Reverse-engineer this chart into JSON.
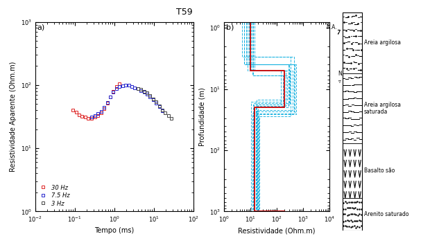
{
  "title": "T59",
  "panel_a": {
    "xlabel": "Tempo (ms)",
    "ylabel": "Resistividade Aparente (Ohm.m)",
    "xlim": [
      0.01,
      100
    ],
    "ylim": [
      1,
      1000
    ],
    "series": [
      {
        "label": "30 Hz",
        "color": "#dd2222",
        "marker": "s",
        "x": [
          0.09,
          0.11,
          0.13,
          0.155,
          0.185,
          0.22,
          0.27,
          0.33,
          0.39,
          0.47,
          0.56,
          0.67,
          0.8,
          0.95,
          1.14,
          1.36
        ],
        "y": [
          40,
          37,
          34,
          32,
          31,
          30,
          30,
          31,
          33,
          36,
          42,
          52,
          65,
          80,
          95,
          105
        ]
      },
      {
        "label": "7.5 Hz",
        "color": "#2222cc",
        "marker": "s",
        "x": [
          0.27,
          0.33,
          0.39,
          0.47,
          0.56,
          0.67,
          0.8,
          0.95,
          1.14,
          1.36,
          1.63,
          1.95,
          2.33,
          2.79,
          3.33,
          3.98,
          4.76,
          5.7,
          6.8,
          8.1,
          9.7,
          11.6,
          13.9,
          16.6
        ],
        "y": [
          31,
          33,
          35,
          38,
          44,
          53,
          65,
          78,
          88,
          95,
          98,
          100,
          99,
          95,
          90,
          87,
          82,
          78,
          72,
          65,
          58,
          52,
          45,
          39
        ]
      },
      {
        "label": "3 Hz",
        "color": "#444444",
        "marker": "s",
        "x": [
          3.98,
          4.76,
          5.7,
          6.8,
          8.1,
          9.7,
          11.6,
          13.9,
          16.6,
          19.8,
          23.7,
          28.3
        ],
        "y": [
          88,
          85,
          80,
          75,
          68,
          60,
          54,
          47,
          40,
          36,
          33,
          30
        ]
      }
    ]
  },
  "panel_b": {
    "xlabel": "Resistividade (Ohm.m)",
    "ylabel": "Profundidade (m)",
    "xlim": [
      1,
      10000
    ],
    "ylim": [
      1000,
      0.8
    ],
    "red_model_res": [
      10,
      10,
      200,
      200,
      15,
      15,
      15,
      15,
      200,
      200
    ],
    "red_model_depth": [
      0.8,
      5,
      5,
      20,
      20,
      90,
      90,
      1000,
      1000,
      1000
    ],
    "blue_models": [
      {
        "res": [
          7,
          7,
          300,
          300,
          20,
          20,
          20,
          20,
          300
        ],
        "dep": [
          0.8,
          4,
          4,
          18,
          18,
          80,
          80,
          1000,
          1000
        ]
      },
      {
        "res": [
          8,
          8,
          400,
          400,
          18,
          18,
          18,
          18,
          400
        ],
        "dep": [
          0.8,
          5,
          5,
          22,
          22,
          100,
          100,
          1000,
          1000
        ]
      },
      {
        "res": [
          6,
          6,
          500,
          500,
          12,
          12,
          12,
          12,
          500
        ],
        "dep": [
          0.8,
          4,
          4,
          25,
          25,
          110,
          110,
          1000,
          1000
        ]
      },
      {
        "res": [
          12,
          12,
          250,
          250,
          17,
          17,
          17,
          17,
          250
        ],
        "dep": [
          0.8,
          6,
          6,
          15,
          15,
          75,
          75,
          1000,
          1000
        ]
      },
      {
        "res": [
          5,
          5,
          350,
          350,
          22,
          22,
          22,
          22,
          350
        ],
        "dep": [
          0.8,
          3,
          3,
          28,
          28,
          95,
          95,
          1000,
          1000
        ]
      },
      {
        "res": [
          15,
          15,
          150,
          150,
          13,
          13,
          13,
          13,
          150
        ],
        "dep": [
          0.8,
          5,
          5,
          18,
          18,
          85,
          85,
          1000,
          1000
        ]
      },
      {
        "res": [
          9,
          9,
          280,
          280,
          16,
          16,
          16,
          16,
          280
        ],
        "dep": [
          0.8,
          4,
          4,
          20,
          20,
          90,
          90,
          1000,
          1000
        ]
      },
      {
        "res": [
          11,
          11,
          320,
          320,
          14,
          14,
          14,
          14,
          320
        ],
        "dep": [
          0.8,
          5,
          5,
          17,
          17,
          88,
          88,
          1000,
          1000
        ]
      },
      {
        "res": [
          7,
          7,
          450,
          450,
          19,
          19,
          19,
          19,
          450
        ],
        "dep": [
          0.8,
          3,
          3,
          23,
          23,
          105,
          105,
          1000,
          1000
        ]
      },
      {
        "res": [
          13,
          13,
          180,
          180,
          11,
          11,
          11,
          11,
          180
        ],
        "dep": [
          0.8,
          6,
          6,
          16,
          16,
          78,
          78,
          1000,
          1000
        ]
      },
      {
        "res": [
          6,
          6,
          550,
          550,
          21,
          21,
          21,
          21,
          550
        ],
        "dep": [
          0.8,
          4,
          4,
          26,
          26,
          115,
          115,
          1000,
          1000
        ]
      },
      {
        "res": [
          10,
          10,
          220,
          220,
          16,
          16,
          16,
          16,
          220
        ],
        "dep": [
          0.8,
          5,
          5,
          19,
          19,
          92,
          92,
          1000,
          1000
        ]
      }
    ],
    "na_depth": 5.0
  },
  "background_color": "#ffffff"
}
